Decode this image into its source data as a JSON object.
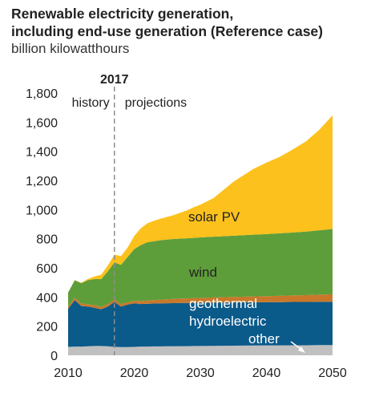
{
  "title_line1": "Renewable electricity generation,",
  "title_line2": "including end-use generation (Reference case)",
  "subtitle": "billion kilowatthours",
  "chart_data": {
    "type": "area",
    "stacked": true,
    "title": "Renewable electricity generation, including end-use generation (Reference case)",
    "ylabel": "billion kilowatthours",
    "xlim": [
      2010,
      2050
    ],
    "ylim": [
      0,
      1800
    ],
    "x_ticks": [
      2010,
      2020,
      2030,
      2040,
      2050
    ],
    "y_ticks": [
      0,
      200,
      400,
      600,
      800,
      1000,
      1200,
      1400,
      1600,
      1800
    ],
    "y_tick_labels": [
      "0",
      "200",
      "400",
      "600",
      "800",
      "1,000",
      "1,200",
      "1,400",
      "1,600",
      "1,800"
    ],
    "divider_year": 2017,
    "divider_label": "2017",
    "region_labels": {
      "history": "history",
      "projections": "projections"
    },
    "x": [
      2010,
      2011,
      2012,
      2013,
      2014,
      2015,
      2016,
      2017,
      2018,
      2019,
      2020,
      2021,
      2022,
      2023,
      2024,
      2025,
      2026,
      2027,
      2028,
      2029,
      2030,
      2032,
      2035,
      2038,
      2040,
      2042,
      2044,
      2046,
      2048,
      2050
    ],
    "series": [
      {
        "key": "other",
        "name": "other",
        "color": "#c0c0c0",
        "values": [
          58,
          60,
          60,
          62,
          64,
          64,
          62,
          58,
          56,
          56,
          58,
          60,
          60,
          61,
          61,
          62,
          62,
          63,
          63,
          64,
          64,
          65,
          66,
          67,
          68,
          68,
          69,
          69,
          70,
          70
        ]
      },
      {
        "key": "hydroelectric",
        "name": "hydroelectric",
        "color": "#0a5a8a",
        "values": [
          262,
          318,
          278,
          272,
          262,
          252,
          272,
          308,
          278,
          292,
          298,
          292,
          294,
          294,
          295,
          295,
          296,
          296,
          296,
          296,
          297,
          297,
          297,
          297,
          297,
          297,
          297,
          297,
          297,
          297
        ]
      },
      {
        "key": "geothermal",
        "name": "geothermal",
        "color": "#c8782a",
        "values": [
          16,
          17,
          17,
          17,
          17,
          17,
          17,
          17,
          17,
          17,
          18,
          20,
          22,
          24,
          26,
          28,
          29,
          30,
          31,
          32,
          33,
          35,
          38,
          40,
          41,
          43,
          45,
          47,
          49,
          52
        ]
      },
      {
        "key": "wind",
        "name": "wind",
        "color": "#5e9e3a",
        "values": [
          95,
          120,
          140,
          165,
          180,
          190,
          225,
          255,
          270,
          310,
          355,
          385,
          400,
          404,
          408,
          410,
          411,
          412,
          413,
          414,
          415,
          417,
          420,
          424,
          426,
          429,
          432,
          436,
          442,
          448
        ]
      },
      {
        "key": "solar_pv",
        "name": "solar PV",
        "color": "#fcc11c",
        "values": [
          0,
          1,
          3,
          8,
          18,
          30,
          40,
          52,
          60,
          65,
          90,
          115,
          130,
          140,
          148,
          155,
          165,
          178,
          192,
          210,
          225,
          265,
          370,
          450,
          490,
          525,
          570,
          620,
          690,
          780
        ]
      }
    ]
  }
}
